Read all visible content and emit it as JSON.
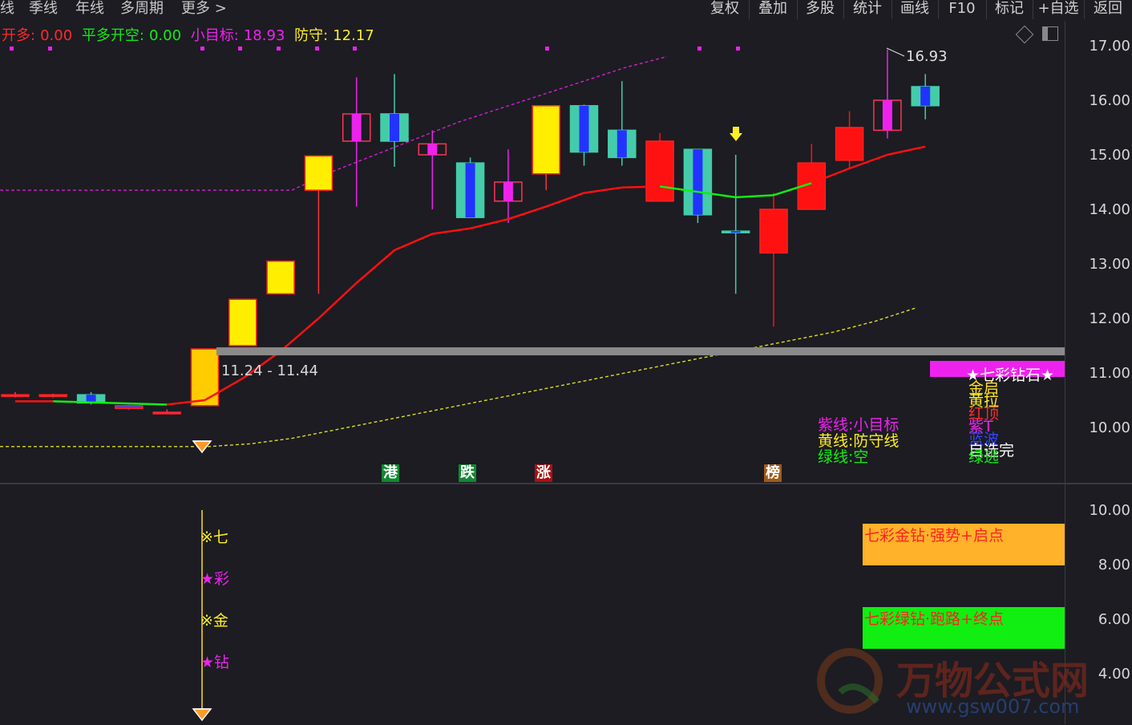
{
  "toolbar_left": [
    "线",
    "季线",
    "年线",
    "多周期",
    "更多 >"
  ],
  "toolbar_right": [
    "复权",
    "叠加",
    "多股",
    "统计",
    "画线",
    "F10",
    "标记",
    "+自选",
    "返回"
  ],
  "indicator_line": {
    "items": [
      {
        "label": "开多:",
        "value": "0.00",
        "color": "#ff2a2a"
      },
      {
        "label": "平多开空:",
        "value": "0.00",
        "color": "#11ee11"
      },
      {
        "label": "小目标:",
        "value": "18.93",
        "color": "#ee22ee"
      },
      {
        "label": "防守:",
        "value": "12.17",
        "color": "#ffee22"
      }
    ]
  },
  "icons": {
    "diamond": "diamond-outline-icon",
    "layout": "layout-toggle-icon"
  },
  "price_axis": {
    "ticks": [
      "17.00",
      "16.00",
      "15.00",
      "14.00",
      "13.00",
      "12.00",
      "11.00",
      "10.00"
    ]
  },
  "annotations": {
    "high_label": "16.93",
    "range_label": "11.24 - 11.44"
  },
  "bottom_markers": [
    {
      "text": "港",
      "bg": "#118833"
    },
    {
      "text": "跌",
      "bg": "#118833"
    },
    {
      "text": "涨",
      "bg": "#aa1111"
    },
    {
      "text": "榜",
      "bg": "#a05a1a"
    }
  ],
  "legend_middle": [
    {
      "text": "紫线:小目标",
      "color": "#ee22ee"
    },
    {
      "text": "黄线:防守线",
      "color": "#ffee22"
    },
    {
      "text": "绿线:空",
      "color": "#11ee11"
    }
  ],
  "legend_right": {
    "badge": "★七彩钻石★",
    "lines": [
      {
        "text": "金启",
        "color": "#ffdd22"
      },
      {
        "text": "黄拉",
        "color": "#ffee22"
      },
      {
        "text": "红顶",
        "color": "#ff2a2a"
      },
      {
        "text": "紫T",
        "color": "#ee22ee"
      },
      {
        "text": "蓝波",
        "color": "#3344ff"
      },
      {
        "text": "自选完",
        "color": "#ffffff"
      },
      {
        "text": "绿逃",
        "color": "#11ee11"
      }
    ]
  },
  "sub_axis": {
    "ticks": [
      "10.00",
      "8.00",
      "6.00",
      "4.00"
    ]
  },
  "sub_labels": [
    {
      "text": "※七",
      "color": "#ffee22"
    },
    {
      "text": "★彩",
      "color": "#ee22ee"
    },
    {
      "text": "※金",
      "color": "#ffee22"
    },
    {
      "text": "★钻",
      "color": "#ee22ee"
    }
  ],
  "sub_boxes": [
    {
      "text": "七彩金钻·强势+启点",
      "bg": "#ffb22a",
      "color": "#ff2222"
    },
    {
      "text": "七彩绿钻·跑路+终点",
      "bg": "#11ee11",
      "color": "#ff2222"
    }
  ],
  "watermark": {
    "brand": "万物公式网",
    "url": "www.gsw007.com"
  },
  "colors": {
    "bg": "#1c1c22",
    "up": "#ff1111",
    "down": "#44ccaa",
    "ma": "#ff1111",
    "target": "#cc22cc",
    "defend": "#dddd22"
  },
  "chart_data": {
    "type": "candlestick",
    "price_range": [
      9.4,
      17.4
    ],
    "candles": [
      {
        "o": 10.6,
        "c": 10.6,
        "h": 10.65,
        "l": 10.55,
        "color": "#ff2a8a"
      },
      {
        "o": 10.6,
        "c": 10.58,
        "h": 10.62,
        "l": 10.55,
        "color": "#ff2a8a"
      },
      {
        "o": 10.45,
        "c": 10.6,
        "h": 10.65,
        "l": 10.42,
        "color": "#44ccaa"
      },
      {
        "o": 10.4,
        "c": 10.35,
        "h": 10.42,
        "l": 10.32,
        "color": "#3344ff"
      },
      {
        "o": 10.28,
        "c": 10.28,
        "h": 10.33,
        "l": 10.25,
        "color": "#ff2a8a"
      },
      {
        "o": 10.4,
        "c": 11.44,
        "h": 11.44,
        "l": 10.4,
        "color": "#ffcc00"
      },
      {
        "o": 11.5,
        "c": 12.35,
        "h": 12.35,
        "l": 11.5,
        "color": "#ffee00"
      },
      {
        "o": 12.45,
        "c": 13.05,
        "h": 13.05,
        "l": 12.45,
        "color": "#ffee00"
      },
      {
        "o": 14.35,
        "c": 14.98,
        "h": 14.98,
        "l": 12.45,
        "color": "#ffee00"
      },
      {
        "o": 15.25,
        "c": 15.75,
        "h": 16.42,
        "l": 14.05,
        "color": "#ee22ee"
      },
      {
        "o": 15.75,
        "c": 15.25,
        "h": 16.48,
        "l": 14.78,
        "color": "#44ccaa"
      },
      {
        "o": 15.0,
        "c": 15.2,
        "h": 15.45,
        "l": 14.0,
        "color": "#ee22ee"
      },
      {
        "o": 14.85,
        "c": 13.85,
        "h": 14.95,
        "l": 13.85,
        "color": "#44ccaa"
      },
      {
        "o": 14.15,
        "c": 14.5,
        "h": 15.1,
        "l": 13.75,
        "color": "#ee22ee"
      },
      {
        "o": 14.65,
        "c": 15.9,
        "h": 15.9,
        "l": 14.35,
        "color": "#ffee00"
      },
      {
        "o": 15.9,
        "c": 15.05,
        "h": 15.92,
        "l": 14.8,
        "color": "#44ccaa"
      },
      {
        "o": 15.45,
        "c": 14.95,
        "h": 16.35,
        "l": 14.8,
        "color": "#44ccaa"
      },
      {
        "o": 15.25,
        "c": 14.15,
        "h": 15.4,
        "l": 14.15,
        "color": "#ff1111"
      },
      {
        "o": 15.1,
        "c": 13.9,
        "h": 15.1,
        "l": 13.75,
        "color": "#44ccaa"
      },
      {
        "o": 13.6,
        "c": 13.6,
        "h": 15.0,
        "l": 12.45,
        "color": "#44ccaa"
      },
      {
        "o": 13.2,
        "c": 14.0,
        "h": 14.3,
        "l": 11.85,
        "color": "#ff1111"
      },
      {
        "o": 14.0,
        "c": 14.85,
        "h": 15.2,
        "l": 14.0,
        "color": "#ff1111"
      },
      {
        "o": 14.9,
        "c": 15.5,
        "h": 15.8,
        "l": 14.75,
        "color": "#ff1111"
      },
      {
        "o": 15.45,
        "c": 16.0,
        "h": 16.93,
        "l": 15.3,
        "color": "#ee22ee"
      },
      {
        "o": 15.9,
        "c": 16.25,
        "h": 16.48,
        "l": 15.65,
        "color": "#44ccaa"
      }
    ],
    "ma_line": [
      10.48,
      10.48,
      10.46,
      10.44,
      10.42,
      10.5,
      10.9,
      11.4,
      12.0,
      12.65,
      13.25,
      13.55,
      13.65,
      13.82,
      14.05,
      14.3,
      14.4,
      14.42,
      14.32,
      14.22,
      14.26,
      14.48,
      14.75,
      15.0,
      15.15
    ],
    "target_line": [
      14.35,
      14.35,
      14.35,
      14.35,
      14.35,
      14.35,
      14.35,
      14.35,
      14.7,
      15.0,
      15.3,
      15.6,
      15.85,
      16.1,
      16.35,
      16.6,
      16.8
    ],
    "defend_line": [
      9.65,
      9.65,
      9.65,
      9.65,
      9.65,
      9.65,
      9.7,
      9.8,
      9.95,
      10.1,
      10.25,
      10.4,
      10.55,
      10.7,
      10.85,
      11.0,
      11.15,
      11.3,
      11.45,
      11.6,
      11.75,
      11.95,
      12.2
    ]
  }
}
